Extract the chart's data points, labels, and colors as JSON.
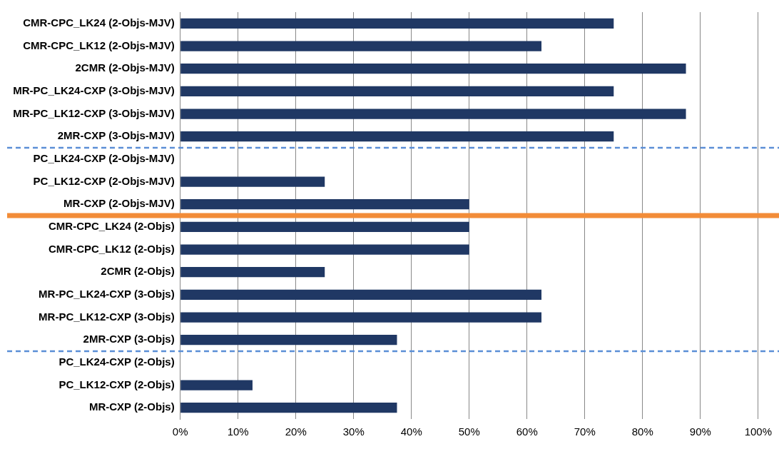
{
  "chart_data": {
    "type": "bar",
    "orientation": "horizontal",
    "categories": [
      "CMR-CPC_LK24 (2-Objs-MJV)",
      "CMR-CPC_LK12 (2-Objs-MJV)",
      "2CMR (2-Objs-MJV)",
      "MR-PC_LK24-CXP (3-Objs-MJV)",
      "MR-PC_LK12-CXP (3-Objs-MJV)",
      "2MR-CXP (3-Objs-MJV)",
      "PC_LK24-CXP (2-Objs-MJV)",
      "PC_LK12-CXP (2-Objs-MJV)",
      "MR-CXP (2-Objs-MJV)",
      "CMR-CPC_LK24 (2-Objs)",
      "CMR-CPC_LK12 (2-Objs)",
      "2CMR (2-Objs)",
      "MR-PC_LK24-CXP (3-Objs)",
      "MR-PC_LK12-CXP (3-Objs)",
      "2MR-CXP (3-Objs)",
      "PC_LK24-CXP (2-Objs)",
      "PC_LK12-CXP (2-Objs)",
      "MR-CXP (2-Objs)"
    ],
    "values": [
      75,
      62.5,
      87.5,
      75,
      87.5,
      75,
      0,
      25,
      50,
      50,
      50,
      25,
      62.5,
      62.5,
      37.5,
      0,
      12.5,
      37.5
    ],
    "color": "#203864",
    "xlim": [
      0,
      100
    ],
    "xticks": [
      {
        "value": 0,
        "label": "0%"
      },
      {
        "value": 10,
        "label": "10%"
      },
      {
        "value": 20,
        "label": "20%"
      },
      {
        "value": 30,
        "label": "30%"
      },
      {
        "value": 40,
        "label": "40%"
      },
      {
        "value": 50,
        "label": "50%"
      },
      {
        "value": 60,
        "label": "60%"
      },
      {
        "value": 70,
        "label": "70%"
      },
      {
        "value": 80,
        "label": "80%"
      },
      {
        "value": 90,
        "label": "90%"
      },
      {
        "value": 100,
        "label": "100%"
      }
    ],
    "grid": "x",
    "legend": false,
    "ref_lines": [
      {
        "axis": "y",
        "value": "2MR-CXP (3-Objs-MJV)",
        "color": "#5b8fd6",
        "line_style": "dashed"
      },
      {
        "axis": "y",
        "value": "MR-CXP (2-Objs-MJV)",
        "color": "#f28c38",
        "line_style": "solid"
      },
      {
        "axis": "y",
        "value": "2MR-CXP (3-Objs)",
        "color": "#5b8fd6",
        "line_style": "dashed"
      }
    ]
  }
}
